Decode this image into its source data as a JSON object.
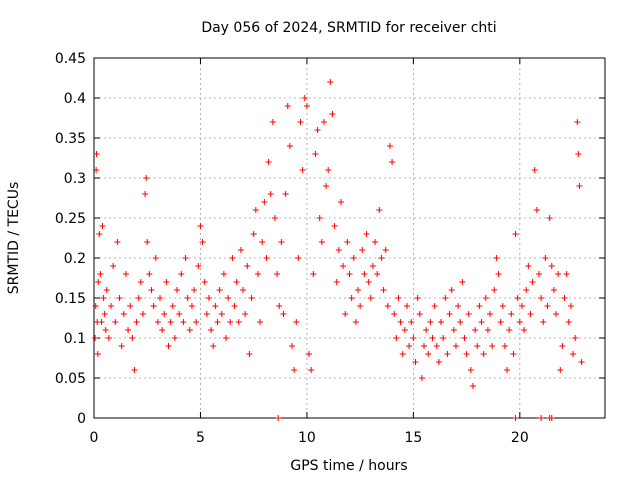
{
  "chart_data": {
    "type": "scatter",
    "title": "Day 056 of 2024, SRMTID for receiver chti",
    "xlabel": "GPS time / hours",
    "ylabel": "SRMTID / TECUs",
    "xlim": [
      0,
      24
    ],
    "ylim": [
      0,
      0.45
    ],
    "xticks": [
      0,
      5,
      10,
      15,
      20
    ],
    "yticks": [
      0,
      0.05,
      0.1,
      0.15,
      0.2,
      0.25,
      0.3,
      0.35,
      0.4,
      0.45
    ],
    "xtick_labels": [
      "0",
      "5",
      "10",
      "15",
      "20"
    ],
    "ytick_labels": [
      "0",
      "0.05",
      "0.1",
      "0.15",
      "0.2",
      "0.25",
      "0.3",
      "0.35",
      "0.4",
      "0.45"
    ],
    "grid": true,
    "marker": "+",
    "color": "#ff0000",
    "points": [
      [
        0.05,
        0.1
      ],
      [
        0.08,
        0.14
      ],
      [
        0.1,
        0.31
      ],
      [
        0.12,
        0.33
      ],
      [
        0.15,
        0.12
      ],
      [
        0.18,
        0.08
      ],
      [
        0.2,
        0.17
      ],
      [
        0.25,
        0.23
      ],
      [
        0.3,
        0.18
      ],
      [
        0.35,
        0.12
      ],
      [
        0.4,
        0.24
      ],
      [
        0.45,
        0.15
      ],
      [
        0.5,
        0.13
      ],
      [
        0.55,
        0.11
      ],
      [
        0.6,
        0.16
      ],
      [
        0.7,
        0.1
      ],
      [
        0.8,
        0.14
      ],
      [
        0.9,
        0.19
      ],
      [
        1.0,
        0.12
      ],
      [
        1.1,
        0.22
      ],
      [
        1.2,
        0.15
      ],
      [
        1.3,
        0.09
      ],
      [
        1.4,
        0.13
      ],
      [
        1.5,
        0.18
      ],
      [
        1.6,
        0.11
      ],
      [
        1.7,
        0.14
      ],
      [
        1.8,
        0.1
      ],
      [
        1.9,
        0.06
      ],
      [
        2.0,
        0.12
      ],
      [
        2.1,
        0.15
      ],
      [
        2.2,
        0.17
      ],
      [
        2.3,
        0.13
      ],
      [
        2.4,
        0.28
      ],
      [
        2.45,
        0.3
      ],
      [
        2.5,
        0.22
      ],
      [
        2.6,
        0.18
      ],
      [
        2.7,
        0.16
      ],
      [
        2.8,
        0.14
      ],
      [
        2.9,
        0.2
      ],
      [
        3.0,
        0.12
      ],
      [
        3.1,
        0.15
      ],
      [
        3.2,
        0.11
      ],
      [
        3.3,
        0.13
      ],
      [
        3.4,
        0.17
      ],
      [
        3.5,
        0.09
      ],
      [
        3.6,
        0.12
      ],
      [
        3.7,
        0.14
      ],
      [
        3.8,
        0.1
      ],
      [
        3.9,
        0.16
      ],
      [
        4.0,
        0.13
      ],
      [
        4.1,
        0.18
      ],
      [
        4.2,
        0.12
      ],
      [
        4.3,
        0.2
      ],
      [
        4.4,
        0.15
      ],
      [
        4.5,
        0.11
      ],
      [
        4.6,
        0.14
      ],
      [
        4.7,
        0.16
      ],
      [
        4.8,
        0.12
      ],
      [
        4.9,
        0.19
      ],
      [
        5.0,
        0.24
      ],
      [
        5.1,
        0.22
      ],
      [
        5.2,
        0.17
      ],
      [
        5.3,
        0.13
      ],
      [
        5.4,
        0.15
      ],
      [
        5.5,
        0.11
      ],
      [
        5.6,
        0.09
      ],
      [
        5.7,
        0.14
      ],
      [
        5.8,
        0.12
      ],
      [
        5.9,
        0.16
      ],
      [
        6.0,
        0.13
      ],
      [
        6.1,
        0.18
      ],
      [
        6.2,
        0.1
      ],
      [
        6.3,
        0.15
      ],
      [
        6.4,
        0.12
      ],
      [
        6.5,
        0.2
      ],
      [
        6.6,
        0.14
      ],
      [
        6.7,
        0.17
      ],
      [
        6.8,
        0.12
      ],
      [
        6.9,
        0.21
      ],
      [
        7.0,
        0.16
      ],
      [
        7.1,
        0.13
      ],
      [
        7.2,
        0.19
      ],
      [
        7.3,
        0.08
      ],
      [
        7.4,
        0.15
      ],
      [
        7.5,
        0.23
      ],
      [
        7.6,
        0.26
      ],
      [
        7.7,
        0.18
      ],
      [
        7.8,
        0.12
      ],
      [
        7.9,
        0.22
      ],
      [
        8.0,
        0.27
      ],
      [
        8.1,
        0.2
      ],
      [
        8.2,
        0.32
      ],
      [
        8.3,
        0.28
      ],
      [
        8.4,
        0.37
      ],
      [
        8.5,
        0.25
      ],
      [
        8.6,
        0.18
      ],
      [
        8.7,
        0.14
      ],
      [
        8.8,
        0.22
      ],
      [
        8.9,
        0.13
      ],
      [
        9.0,
        0.28
      ],
      [
        9.1,
        0.39
      ],
      [
        9.2,
        0.34
      ],
      [
        9.3,
        0.09
      ],
      [
        9.4,
        0.06
      ],
      [
        9.5,
        0.12
      ],
      [
        9.6,
        0.2
      ],
      [
        9.7,
        0.37
      ],
      [
        9.8,
        0.31
      ],
      [
        9.9,
        0.4
      ],
      [
        10.0,
        0.39
      ],
      [
        10.1,
        0.08
      ],
      [
        10.2,
        0.06
      ],
      [
        10.3,
        0.18
      ],
      [
        10.4,
        0.33
      ],
      [
        10.5,
        0.36
      ],
      [
        10.6,
        0.25
      ],
      [
        10.7,
        0.22
      ],
      [
        10.8,
        0.37
      ],
      [
        10.9,
        0.29
      ],
      [
        11.0,
        0.31
      ],
      [
        11.1,
        0.42
      ],
      [
        11.2,
        0.38
      ],
      [
        11.3,
        0.24
      ],
      [
        11.4,
        0.17
      ],
      [
        11.5,
        0.21
      ],
      [
        11.6,
        0.27
      ],
      [
        11.7,
        0.19
      ],
      [
        11.8,
        0.13
      ],
      [
        11.9,
        0.22
      ],
      [
        12.0,
        0.18
      ],
      [
        12.1,
        0.15
      ],
      [
        12.2,
        0.2
      ],
      [
        12.3,
        0.12
      ],
      [
        12.4,
        0.16
      ],
      [
        12.5,
        0.14
      ],
      [
        12.6,
        0.21
      ],
      [
        12.7,
        0.18
      ],
      [
        12.8,
        0.23
      ],
      [
        12.9,
        0.17
      ],
      [
        13.0,
        0.15
      ],
      [
        13.1,
        0.19
      ],
      [
        13.2,
        0.22
      ],
      [
        13.3,
        0.18
      ],
      [
        13.4,
        0.26
      ],
      [
        13.5,
        0.2
      ],
      [
        13.6,
        0.16
      ],
      [
        13.7,
        0.21
      ],
      [
        13.8,
        0.14
      ],
      [
        13.9,
        0.34
      ],
      [
        14.0,
        0.32
      ],
      [
        14.1,
        0.13
      ],
      [
        14.2,
        0.1
      ],
      [
        14.3,
        0.15
      ],
      [
        14.4,
        0.12
      ],
      [
        14.5,
        0.08
      ],
      [
        14.6,
        0.11
      ],
      [
        14.7,
        0.14
      ],
      [
        14.8,
        0.09
      ],
      [
        14.9,
        0.12
      ],
      [
        15.0,
        0.1
      ],
      [
        15.1,
        0.07
      ],
      [
        15.2,
        0.15
      ],
      [
        15.3,
        0.13
      ],
      [
        15.4,
        0.05
      ],
      [
        15.5,
        0.09
      ],
      [
        15.6,
        0.11
      ],
      [
        15.7,
        0.08
      ],
      [
        15.8,
        0.12
      ],
      [
        15.9,
        0.1
      ],
      [
        16.0,
        0.14
      ],
      [
        16.1,
        0.09
      ],
      [
        16.2,
        0.07
      ],
      [
        16.3,
        0.12
      ],
      [
        16.4,
        0.1
      ],
      [
        16.5,
        0.15
      ],
      [
        16.6,
        0.08
      ],
      [
        16.7,
        0.13
      ],
      [
        16.8,
        0.16
      ],
      [
        16.9,
        0.11
      ],
      [
        17.0,
        0.09
      ],
      [
        17.1,
        0.14
      ],
      [
        17.2,
        0.12
      ],
      [
        17.3,
        0.17
      ],
      [
        17.4,
        0.1
      ],
      [
        17.5,
        0.08
      ],
      [
        17.6,
        0.13
      ],
      [
        17.7,
        0.06
      ],
      [
        17.8,
        0.04
      ],
      [
        17.9,
        0.11
      ],
      [
        18.0,
        0.09
      ],
      [
        18.1,
        0.14
      ],
      [
        18.2,
        0.12
      ],
      [
        18.3,
        0.08
      ],
      [
        18.4,
        0.15
      ],
      [
        18.5,
        0.11
      ],
      [
        18.6,
        0.13
      ],
      [
        18.7,
        0.09
      ],
      [
        18.8,
        0.16
      ],
      [
        18.9,
        0.2
      ],
      [
        19.0,
        0.18
      ],
      [
        19.1,
        0.12
      ],
      [
        19.2,
        0.14
      ],
      [
        19.3,
        0.09
      ],
      [
        19.4,
        0.06
      ],
      [
        19.5,
        0.11
      ],
      [
        19.6,
        0.13
      ],
      [
        19.7,
        0.08
      ],
      [
        19.8,
        0.23
      ],
      [
        19.9,
        0.15
      ],
      [
        20.0,
        0.12
      ],
      [
        20.1,
        0.14
      ],
      [
        20.2,
        0.11
      ],
      [
        20.3,
        0.16
      ],
      [
        20.4,
        0.19
      ],
      [
        20.5,
        0.13
      ],
      [
        20.6,
        0.17
      ],
      [
        20.7,
        0.31
      ],
      [
        20.8,
        0.26
      ],
      [
        20.9,
        0.18
      ],
      [
        21.0,
        0.15
      ],
      [
        21.1,
        0.12
      ],
      [
        21.2,
        0.2
      ],
      [
        21.3,
        0.14
      ],
      [
        21.4,
        0.25
      ],
      [
        21.5,
        0.19
      ],
      [
        21.6,
        0.16
      ],
      [
        21.7,
        0.13
      ],
      [
        21.8,
        0.18
      ],
      [
        21.9,
        0.06
      ],
      [
        22.0,
        0.09
      ],
      [
        22.1,
        0.15
      ],
      [
        22.2,
        0.18
      ],
      [
        22.3,
        0.12
      ],
      [
        22.4,
        0.14
      ],
      [
        22.5,
        0.08
      ],
      [
        22.6,
        0.1
      ],
      [
        22.7,
        0.37
      ],
      [
        22.75,
        0.33
      ],
      [
        22.8,
        0.29
      ],
      [
        22.9,
        0.07
      ],
      [
        8.65,
        0.0
      ],
      [
        19.8,
        0.0
      ],
      [
        21.0,
        0.0
      ],
      [
        21.4,
        0.0
      ],
      [
        21.5,
        0.0
      ]
    ]
  }
}
